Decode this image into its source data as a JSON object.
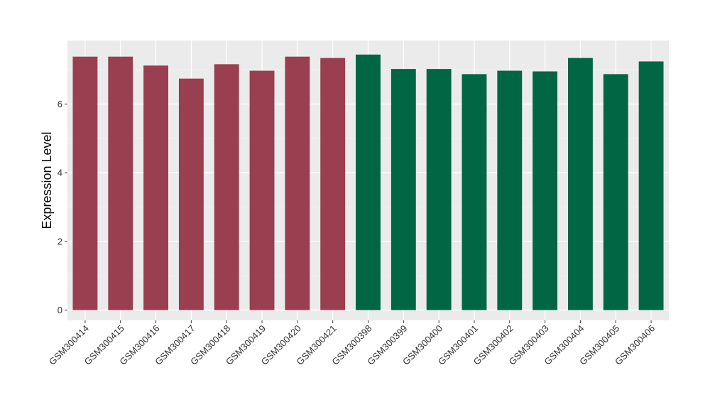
{
  "chart_data": {
    "type": "bar",
    "ylabel": "Expression Level",
    "xlabel": "",
    "ylim": [
      -0.3,
      7.85
    ],
    "yticks": [
      0,
      2,
      4,
      6
    ],
    "grid": true,
    "panel_background": "#ebebeb",
    "categories": [
      "GSM300414",
      "GSM300415",
      "GSM300416",
      "GSM300417",
      "GSM300418",
      "GSM300419",
      "GSM300420",
      "GSM300421",
      "GSM300398",
      "GSM300399",
      "GSM300400",
      "GSM300401",
      "GSM300402",
      "GSM300403",
      "GSM300404",
      "GSM300405",
      "GSM300406"
    ],
    "values": [
      7.38,
      7.38,
      7.12,
      6.74,
      7.16,
      6.97,
      7.38,
      7.34,
      7.44,
      7.02,
      7.02,
      6.87,
      6.97,
      6.95,
      7.34,
      6.87,
      7.24
    ],
    "bar_colors": [
      "#9a3f4f",
      "#9a3f4f",
      "#9a3f4f",
      "#9a3f4f",
      "#9a3f4f",
      "#9a3f4f",
      "#9a3f4f",
      "#9a3f4f",
      "#006644",
      "#006644",
      "#006644",
      "#006644",
      "#006644",
      "#006644",
      "#006644",
      "#006644",
      "#006644"
    ]
  }
}
